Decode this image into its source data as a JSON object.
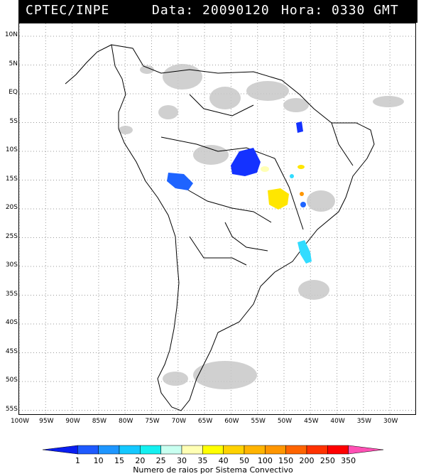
{
  "header": {
    "agency": "CPTEC/INPE",
    "date_text": "Data: 20090120",
    "time_text": "Hora: 0330 GMT"
  },
  "map": {
    "lat_labels": [
      "10N",
      "5N",
      "EQ",
      "5S",
      "10S",
      "15S",
      "20S",
      "25S",
      "30S",
      "35S",
      "40S",
      "45S",
      "50S",
      "55S"
    ],
    "lon_labels": [
      "100W",
      "95W",
      "90W",
      "85W",
      "80W",
      "75W",
      "70W",
      "65W",
      "60W",
      "55W",
      "50W",
      "45W",
      "40W",
      "35W",
      "30W"
    ],
    "cloud_color": "#c8c8c8",
    "coast_color": "#000000"
  },
  "colorbar": {
    "title": "Numero de raios por Sistema Convectivo",
    "ticks": [
      "1",
      "10",
      "15",
      "20",
      "25",
      "30",
      "35",
      "40",
      "50",
      "100",
      "150",
      "200",
      "250",
      "350"
    ],
    "colors": [
      "#0a1ef0",
      "#1e5aff",
      "#1e96ff",
      "#14c8ff",
      "#14f0f0",
      "#c8fff0",
      "#ffffb4",
      "#ffff00",
      "#ffd200",
      "#ffb400",
      "#ff9600",
      "#ff6400",
      "#ff3200",
      "#ff0000",
      "#ff50b4"
    ]
  },
  "systems": [
    {
      "color": "#1432ff",
      "label": ""
    },
    {
      "color": "#1e64ff",
      "label": ""
    },
    {
      "color": "#ffe600",
      "label": ""
    },
    {
      "color": "#32dcff",
      "label": ""
    },
    {
      "color": "#ff9600",
      "label": ""
    }
  ]
}
